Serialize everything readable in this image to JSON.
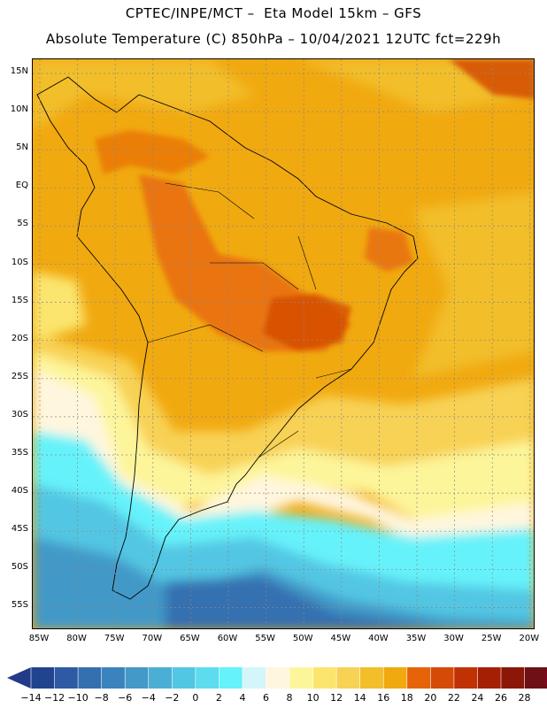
{
  "header": {
    "line1": "CPTEC/INPE/MCT –  Eta Model 15km – GFS",
    "line2": "Absolute Temperature (C) 850hPa – 10/04/2021 12UTC fct=229h"
  },
  "map": {
    "latitude_labels": [
      "15N",
      "10N",
      "5N",
      "EQ",
      "5S",
      "10S",
      "15S",
      "20S",
      "25S",
      "30S",
      "35S",
      "40S",
      "45S",
      "50S",
      "55S"
    ],
    "longitude_labels": [
      "85W",
      "80W",
      "75W",
      "70W",
      "65W",
      "60W",
      "55W",
      "50W",
      "45W",
      "40W",
      "35W",
      "30W",
      "25W",
      "20W"
    ],
    "gridlines": true
  },
  "colorbar": {
    "tick_labels": [
      "-14",
      "-12",
      "-10",
      "-8",
      "-6",
      "-4",
      "-2",
      "0",
      "2",
      "4",
      "6",
      "8",
      "10",
      "12",
      "14",
      "16",
      "18",
      "20",
      "22",
      "24",
      "26",
      "28"
    ],
    "colors": [
      "#22448f",
      "#2d5aa3",
      "#3470b0",
      "#3b83bd",
      "#4399c8",
      "#4bafd5",
      "#52c6e3",
      "#5cdcee",
      "#66f2fa",
      "#d4f5fa",
      "#fff6de",
      "#fdf59a",
      "#fbe56e",
      "#f8d255",
      "#f2be2a",
      "#f1a910",
      "#e6630a",
      "#d44a06",
      "#c03104",
      "#a51f04",
      "#8b1706",
      "#6e1014"
    ],
    "end_colors": [
      "#223a88",
      "#7a0a1e"
    ]
  }
}
